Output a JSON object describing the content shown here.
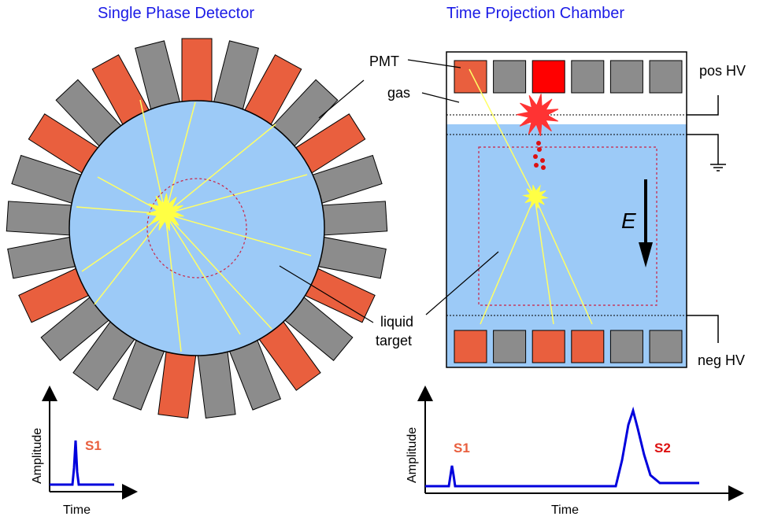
{
  "colors": {
    "title": "#1a1ae6",
    "orange_pmt": "#e95f3e",
    "red_pmt": "#ff0000",
    "gray_pmt": "#8c8c8c",
    "liquid": "#9ccaf7",
    "light_ray": "#ffff66",
    "signal": "#0000dd",
    "s1": "#e95f3e",
    "s2": "#dd1111",
    "fiducial": "#cc2244"
  },
  "left": {
    "title": "Single Phase Detector",
    "pmt_ring": [
      "orange",
      "gray",
      "orange",
      "gray",
      "orange",
      "gray",
      "gray",
      "gray",
      "orange",
      "gray",
      "orange",
      "gray",
      "gray",
      "orange",
      "gray",
      "gray",
      "gray",
      "orange",
      "gray",
      "gray",
      "gray",
      "orange",
      "gray",
      "orange",
      "gray"
    ],
    "plot": {
      "ylabel": "Amplitude",
      "xlabel": "Time",
      "peak_label": "S1"
    }
  },
  "right": {
    "title": "Time Projection Chamber",
    "top_pmts": [
      "orange",
      "gray",
      "red",
      "gray",
      "gray",
      "gray"
    ],
    "bottom_pmts": [
      "orange",
      "gray",
      "orange",
      "orange",
      "gray",
      "gray"
    ],
    "labels": {
      "pmt": "PMT",
      "gas": "gas",
      "pos_hv": "pos HV",
      "neg_hv": "neg HV",
      "field": "E"
    },
    "plot": {
      "ylabel": "Amplitude",
      "xlabel": "Time",
      "s1_label": "S1",
      "s2_label": "S2"
    }
  },
  "shared": {
    "liquid_label_1": "liquid",
    "liquid_label_2": "target"
  }
}
